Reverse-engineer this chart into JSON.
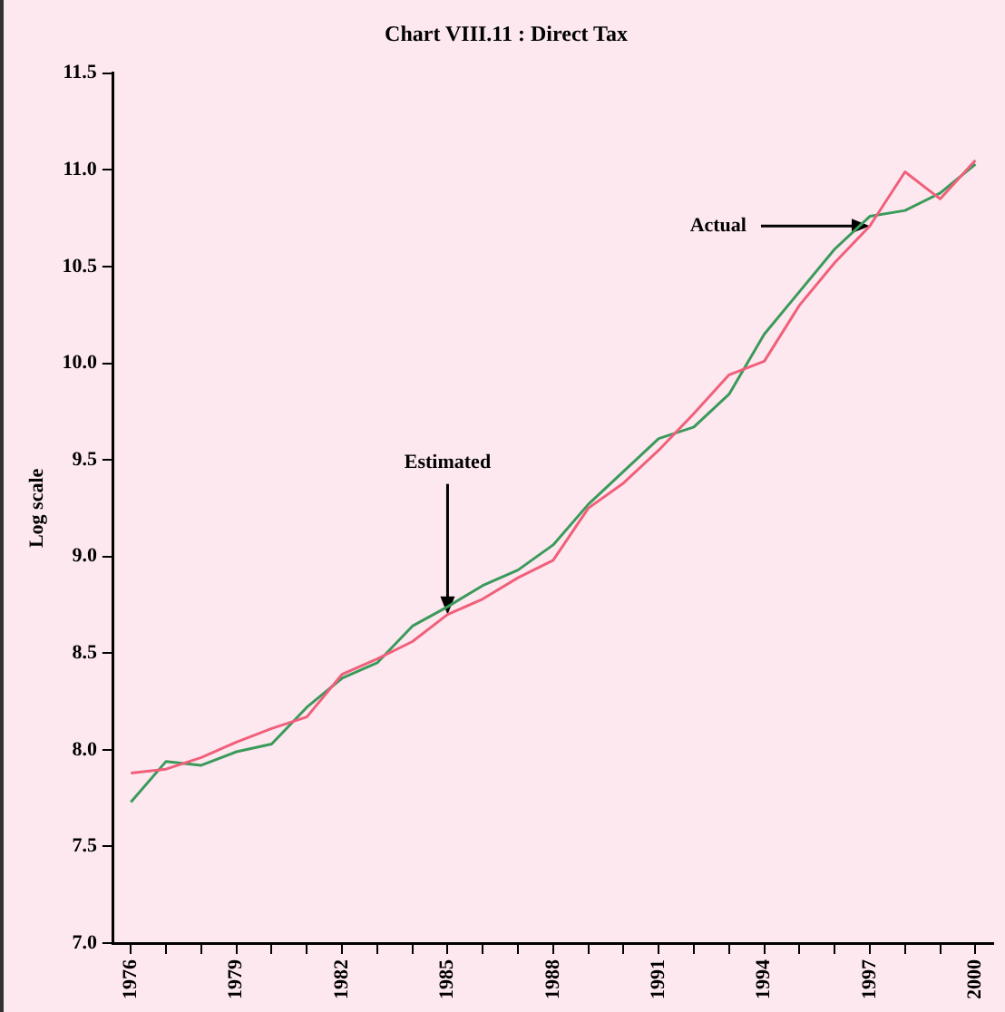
{
  "chart_data": {
    "type": "line",
    "title": "Chart VIII.11 : Direct Tax",
    "ylabel": "Log scale",
    "categories": [
      "1976",
      null,
      null,
      "1979",
      null,
      null,
      "1982",
      null,
      null,
      "1985",
      null,
      null,
      "1988",
      null,
      null,
      "1991",
      null,
      null,
      "1994",
      null,
      null,
      "1997",
      null,
      null,
      "2000"
    ],
    "series": [
      {
        "color": "#f0607a",
        "values": [
          7.88,
          7.9,
          7.96,
          8.04,
          8.11,
          8.17,
          8.39,
          8.47,
          8.56,
          8.7,
          8.78,
          8.89,
          8.98,
          9.25,
          9.38,
          9.55,
          9.74,
          9.94,
          10.01,
          10.3,
          10.52,
          10.71,
          10.99,
          10.85,
          11.05
        ]
      },
      {
        "color": "#3a9a5a",
        "values": [
          7.73,
          7.94,
          7.92,
          7.99,
          8.03,
          8.22,
          8.37,
          8.45,
          8.64,
          8.74,
          8.85,
          8.93,
          9.06,
          9.27,
          9.44,
          9.61,
          9.67,
          9.84,
          10.15,
          10.37,
          10.59,
          10.76,
          10.79,
          10.88,
          11.03
        ]
      }
    ],
    "ylim": [
      7,
      11.5
    ],
    "yticks": [
      {
        "value": 7,
        "label": "7.0"
      },
      {
        "value": 7.5,
        "label": "7.5"
      },
      {
        "value": 8,
        "label": "8.0"
      },
      {
        "value": 8.5,
        "label": "8.5"
      },
      {
        "value": 9,
        "label": "9.0"
      },
      {
        "value": 9.5,
        "label": "9.5"
      },
      {
        "value": 10,
        "label": "10.0"
      },
      {
        "value": 10.5,
        "label": "10.5"
      },
      {
        "value": 11,
        "label": "11.0"
      },
      {
        "value": 11.5,
        "label": "11.5"
      }
    ],
    "grid": false,
    "legend": false,
    "marker": "none",
    "line_style": "solid",
    "annotations": [
      {
        "text": "Estimated",
        "x": "1985",
        "y": 8.7
      },
      {
        "text": "Actual",
        "x": "1997",
        "y": 10.71
      }
    ]
  }
}
